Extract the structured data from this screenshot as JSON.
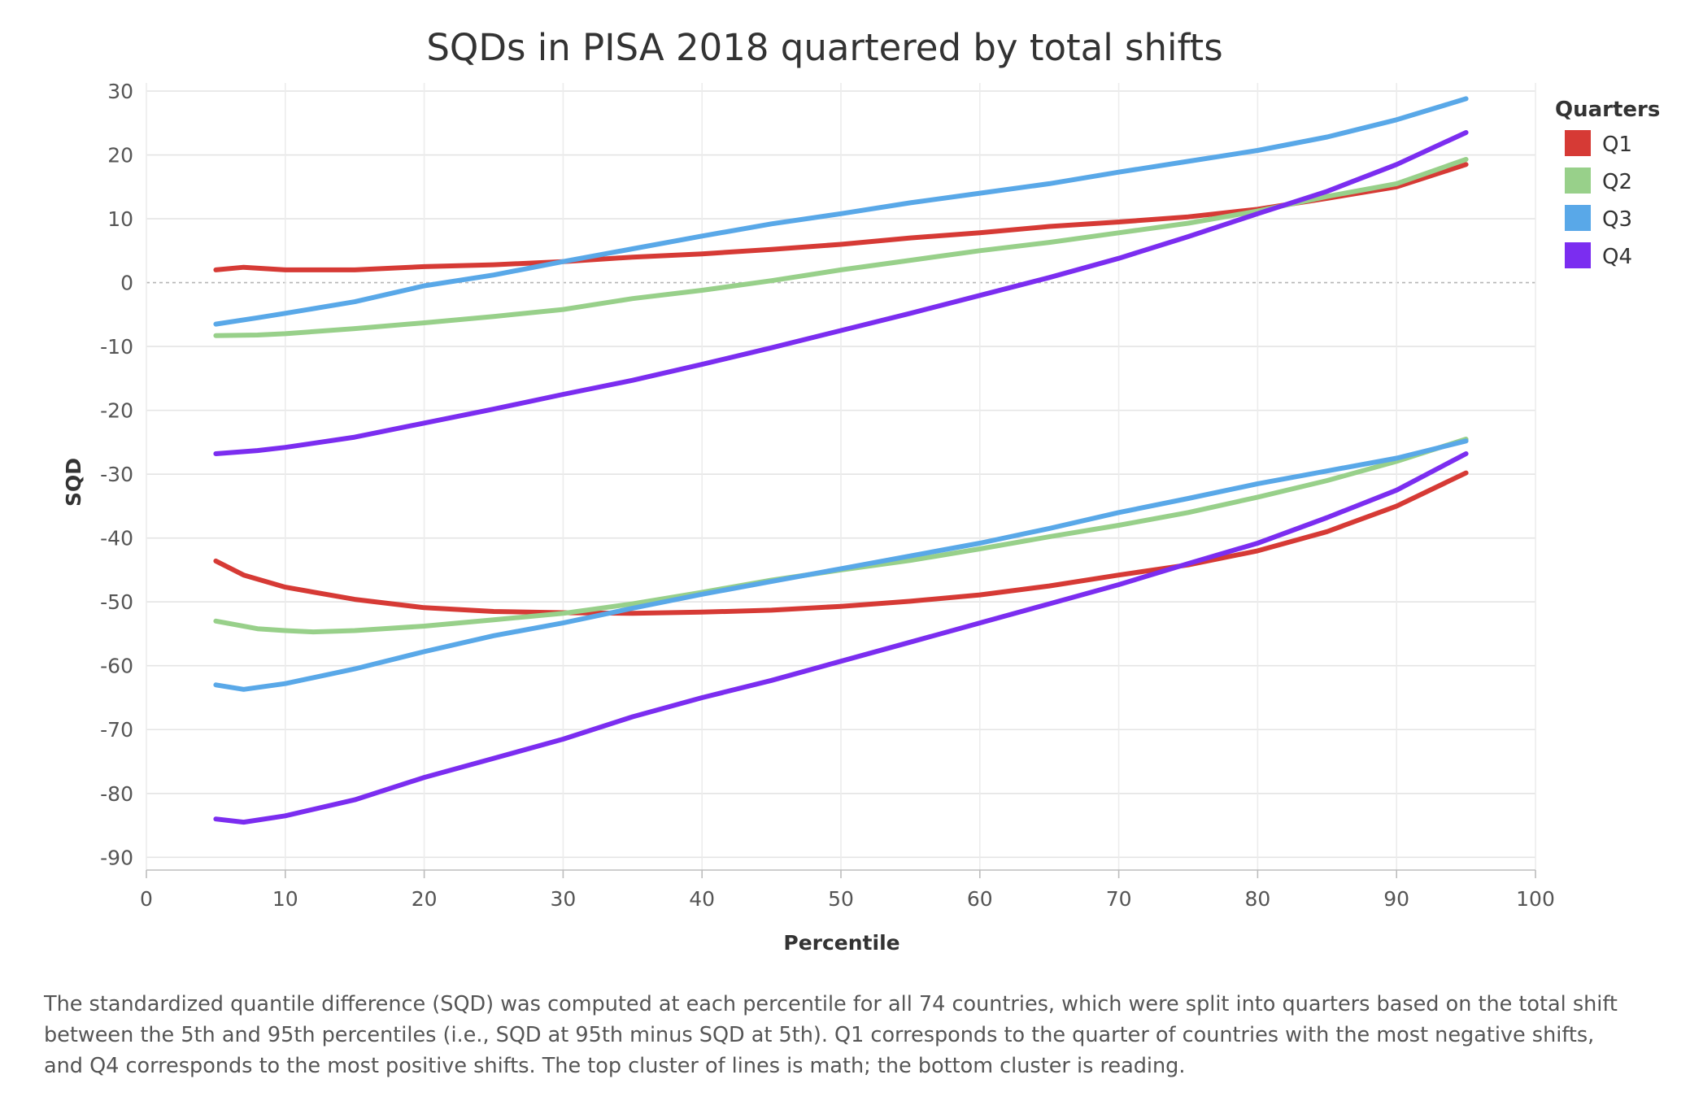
{
  "chart_data": {
    "type": "line",
    "title": "SQDs in PISA 2018 quartered by total shifts",
    "xlabel": "Percentile",
    "ylabel": "SQD",
    "xlim": [
      0,
      100
    ],
    "ylim": [
      -92,
      30
    ],
    "x_ticks": [
      0,
      10,
      20,
      30,
      40,
      50,
      60,
      70,
      80,
      90,
      100
    ],
    "y_ticks": [
      30,
      20,
      10,
      0,
      -10,
      -20,
      -30,
      -40,
      -50,
      -60,
      -70,
      -80,
      -90
    ],
    "zero_line": "dotted",
    "grid": true,
    "legend": {
      "title": "Quarters",
      "position": "top-right"
    },
    "colors": {
      "Q1": "#d63a35",
      "Q2": "#98d08a",
      "Q3": "#59a8e8",
      "Q4": "#7b2df0"
    },
    "groups": [
      {
        "subject": "math",
        "series": [
          {
            "name": "Q1",
            "points": [
              [
                5,
                2
              ],
              [
                7,
                2.4
              ],
              [
                10,
                2
              ],
              [
                15,
                2
              ],
              [
                20,
                2.5
              ],
              [
                25,
                2.8
              ],
              [
                30,
                3.3
              ],
              [
                35,
                4
              ],
              [
                40,
                4.5
              ],
              [
                45,
                5.2
              ],
              [
                50,
                6
              ],
              [
                55,
                7
              ],
              [
                60,
                7.8
              ],
              [
                65,
                8.8
              ],
              [
                70,
                9.5
              ],
              [
                75,
                10.3
              ],
              [
                80,
                11.5
              ],
              [
                85,
                13.2
              ],
              [
                90,
                15
              ],
              [
                95,
                18.5
              ]
            ]
          },
          {
            "name": "Q2",
            "points": [
              [
                5,
                -8.3
              ],
              [
                8,
                -8.2
              ],
              [
                10,
                -8
              ],
              [
                15,
                -7.2
              ],
              [
                20,
                -6.3
              ],
              [
                25,
                -5.3
              ],
              [
                30,
                -4.2
              ],
              [
                35,
                -2.5
              ],
              [
                40,
                -1.2
              ],
              [
                45,
                0.3
              ],
              [
                50,
                2
              ],
              [
                55,
                3.5
              ],
              [
                60,
                5
              ],
              [
                65,
                6.3
              ],
              [
                70,
                7.8
              ],
              [
                75,
                9.3
              ],
              [
                80,
                11.2
              ],
              [
                85,
                13.5
              ],
              [
                90,
                15.5
              ],
              [
                95,
                19.3
              ]
            ]
          },
          {
            "name": "Q3",
            "points": [
              [
                5,
                -6.5
              ],
              [
                8,
                -5.5
              ],
              [
                10,
                -4.8
              ],
              [
                15,
                -3
              ],
              [
                20,
                -0.5
              ],
              [
                25,
                1.2
              ],
              [
                30,
                3.3
              ],
              [
                35,
                5.3
              ],
              [
                40,
                7.3
              ],
              [
                45,
                9.2
              ],
              [
                50,
                10.8
              ],
              [
                55,
                12.5
              ],
              [
                60,
                14
              ],
              [
                65,
                15.5
              ],
              [
                70,
                17.3
              ],
              [
                75,
                19
              ],
              [
                80,
                20.7
              ],
              [
                85,
                22.8
              ],
              [
                90,
                25.5
              ],
              [
                95,
                28.8
              ]
            ]
          },
          {
            "name": "Q4",
            "points": [
              [
                5,
                -26.8
              ],
              [
                8,
                -26.3
              ],
              [
                10,
                -25.8
              ],
              [
                15,
                -24.2
              ],
              [
                20,
                -22
              ],
              [
                25,
                -19.8
              ],
              [
                30,
                -17.5
              ],
              [
                35,
                -15.3
              ],
              [
                40,
                -12.8
              ],
              [
                45,
                -10.2
              ],
              [
                50,
                -7.5
              ],
              [
                55,
                -4.8
              ],
              [
                60,
                -2
              ],
              [
                65,
                0.8
              ],
              [
                70,
                3.8
              ],
              [
                75,
                7.2
              ],
              [
                80,
                10.8
              ],
              [
                85,
                14.3
              ],
              [
                90,
                18.5
              ],
              [
                95,
                23.5
              ]
            ]
          }
        ]
      },
      {
        "subject": "reading",
        "series": [
          {
            "name": "Q1",
            "points": [
              [
                5,
                -43.6
              ],
              [
                7,
                -45.8
              ],
              [
                10,
                -47.7
              ],
              [
                15,
                -49.6
              ],
              [
                20,
                -50.9
              ],
              [
                25,
                -51.5
              ],
              [
                30,
                -51.7
              ],
              [
                35,
                -51.8
              ],
              [
                40,
                -51.6
              ],
              [
                45,
                -51.3
              ],
              [
                50,
                -50.7
              ],
              [
                55,
                -49.9
              ],
              [
                60,
                -48.9
              ],
              [
                65,
                -47.5
              ],
              [
                70,
                -45.8
              ],
              [
                75,
                -44.2
              ],
              [
                80,
                -42
              ],
              [
                85,
                -39
              ],
              [
                90,
                -35
              ],
              [
                95,
                -29.8
              ]
            ]
          },
          {
            "name": "Q2",
            "points": [
              [
                5,
                -53
              ],
              [
                8,
                -54.2
              ],
              [
                10,
                -54.5
              ],
              [
                12,
                -54.7
              ],
              [
                15,
                -54.5
              ],
              [
                20,
                -53.8
              ],
              [
                25,
                -52.8
              ],
              [
                30,
                -51.8
              ],
              [
                35,
                -50.3
              ],
              [
                40,
                -48.5
              ],
              [
                45,
                -46.6
              ],
              [
                50,
                -45
              ],
              [
                55,
                -43.5
              ],
              [
                60,
                -41.7
              ],
              [
                65,
                -39.8
              ],
              [
                70,
                -38
              ],
              [
                75,
                -36
              ],
              [
                80,
                -33.6
              ],
              [
                85,
                -31
              ],
              [
                90,
                -28
              ],
              [
                95,
                -24.5
              ]
            ]
          },
          {
            "name": "Q3",
            "points": [
              [
                5,
                -63
              ],
              [
                7,
                -63.7
              ],
              [
                10,
                -62.8
              ],
              [
                15,
                -60.5
              ],
              [
                20,
                -57.8
              ],
              [
                25,
                -55.3
              ],
              [
                30,
                -53.3
              ],
              [
                35,
                -51
              ],
              [
                40,
                -48.8
              ],
              [
                45,
                -46.8
              ],
              [
                50,
                -44.8
              ],
              [
                55,
                -42.8
              ],
              [
                60,
                -40.8
              ],
              [
                65,
                -38.5
              ],
              [
                70,
                -36
              ],
              [
                75,
                -33.8
              ],
              [
                80,
                -31.5
              ],
              [
                85,
                -29.5
              ],
              [
                90,
                -27.5
              ],
              [
                95,
                -24.8
              ]
            ]
          },
          {
            "name": "Q4",
            "points": [
              [
                5,
                -84
              ],
              [
                7,
                -84.5
              ],
              [
                10,
                -83.5
              ],
              [
                15,
                -81
              ],
              [
                20,
                -77.5
              ],
              [
                25,
                -74.5
              ],
              [
                30,
                -71.5
              ],
              [
                35,
                -68
              ],
              [
                40,
                -65
              ],
              [
                45,
                -62.3
              ],
              [
                50,
                -59.3
              ],
              [
                55,
                -56.3
              ],
              [
                60,
                -53.3
              ],
              [
                65,
                -50.3
              ],
              [
                70,
                -47.3
              ],
              [
                75,
                -44
              ],
              [
                80,
                -40.8
              ],
              [
                85,
                -36.8
              ],
              [
                90,
                -32.5
              ],
              [
                95,
                -26.8
              ]
            ]
          }
        ]
      }
    ]
  },
  "caption": "The standardized quantile difference (SQD) was computed at each percentile for all 74 countries, which were split into quarters based on the total shift between the 5th and 95th percentiles (i.e., SQD at 95th minus SQD at 5th). Q1 corresponds to the quarter of countries with the most negative shifts, and Q4 corresponds to the most positive shifts. The top cluster of lines is math; the bottom cluster is reading."
}
